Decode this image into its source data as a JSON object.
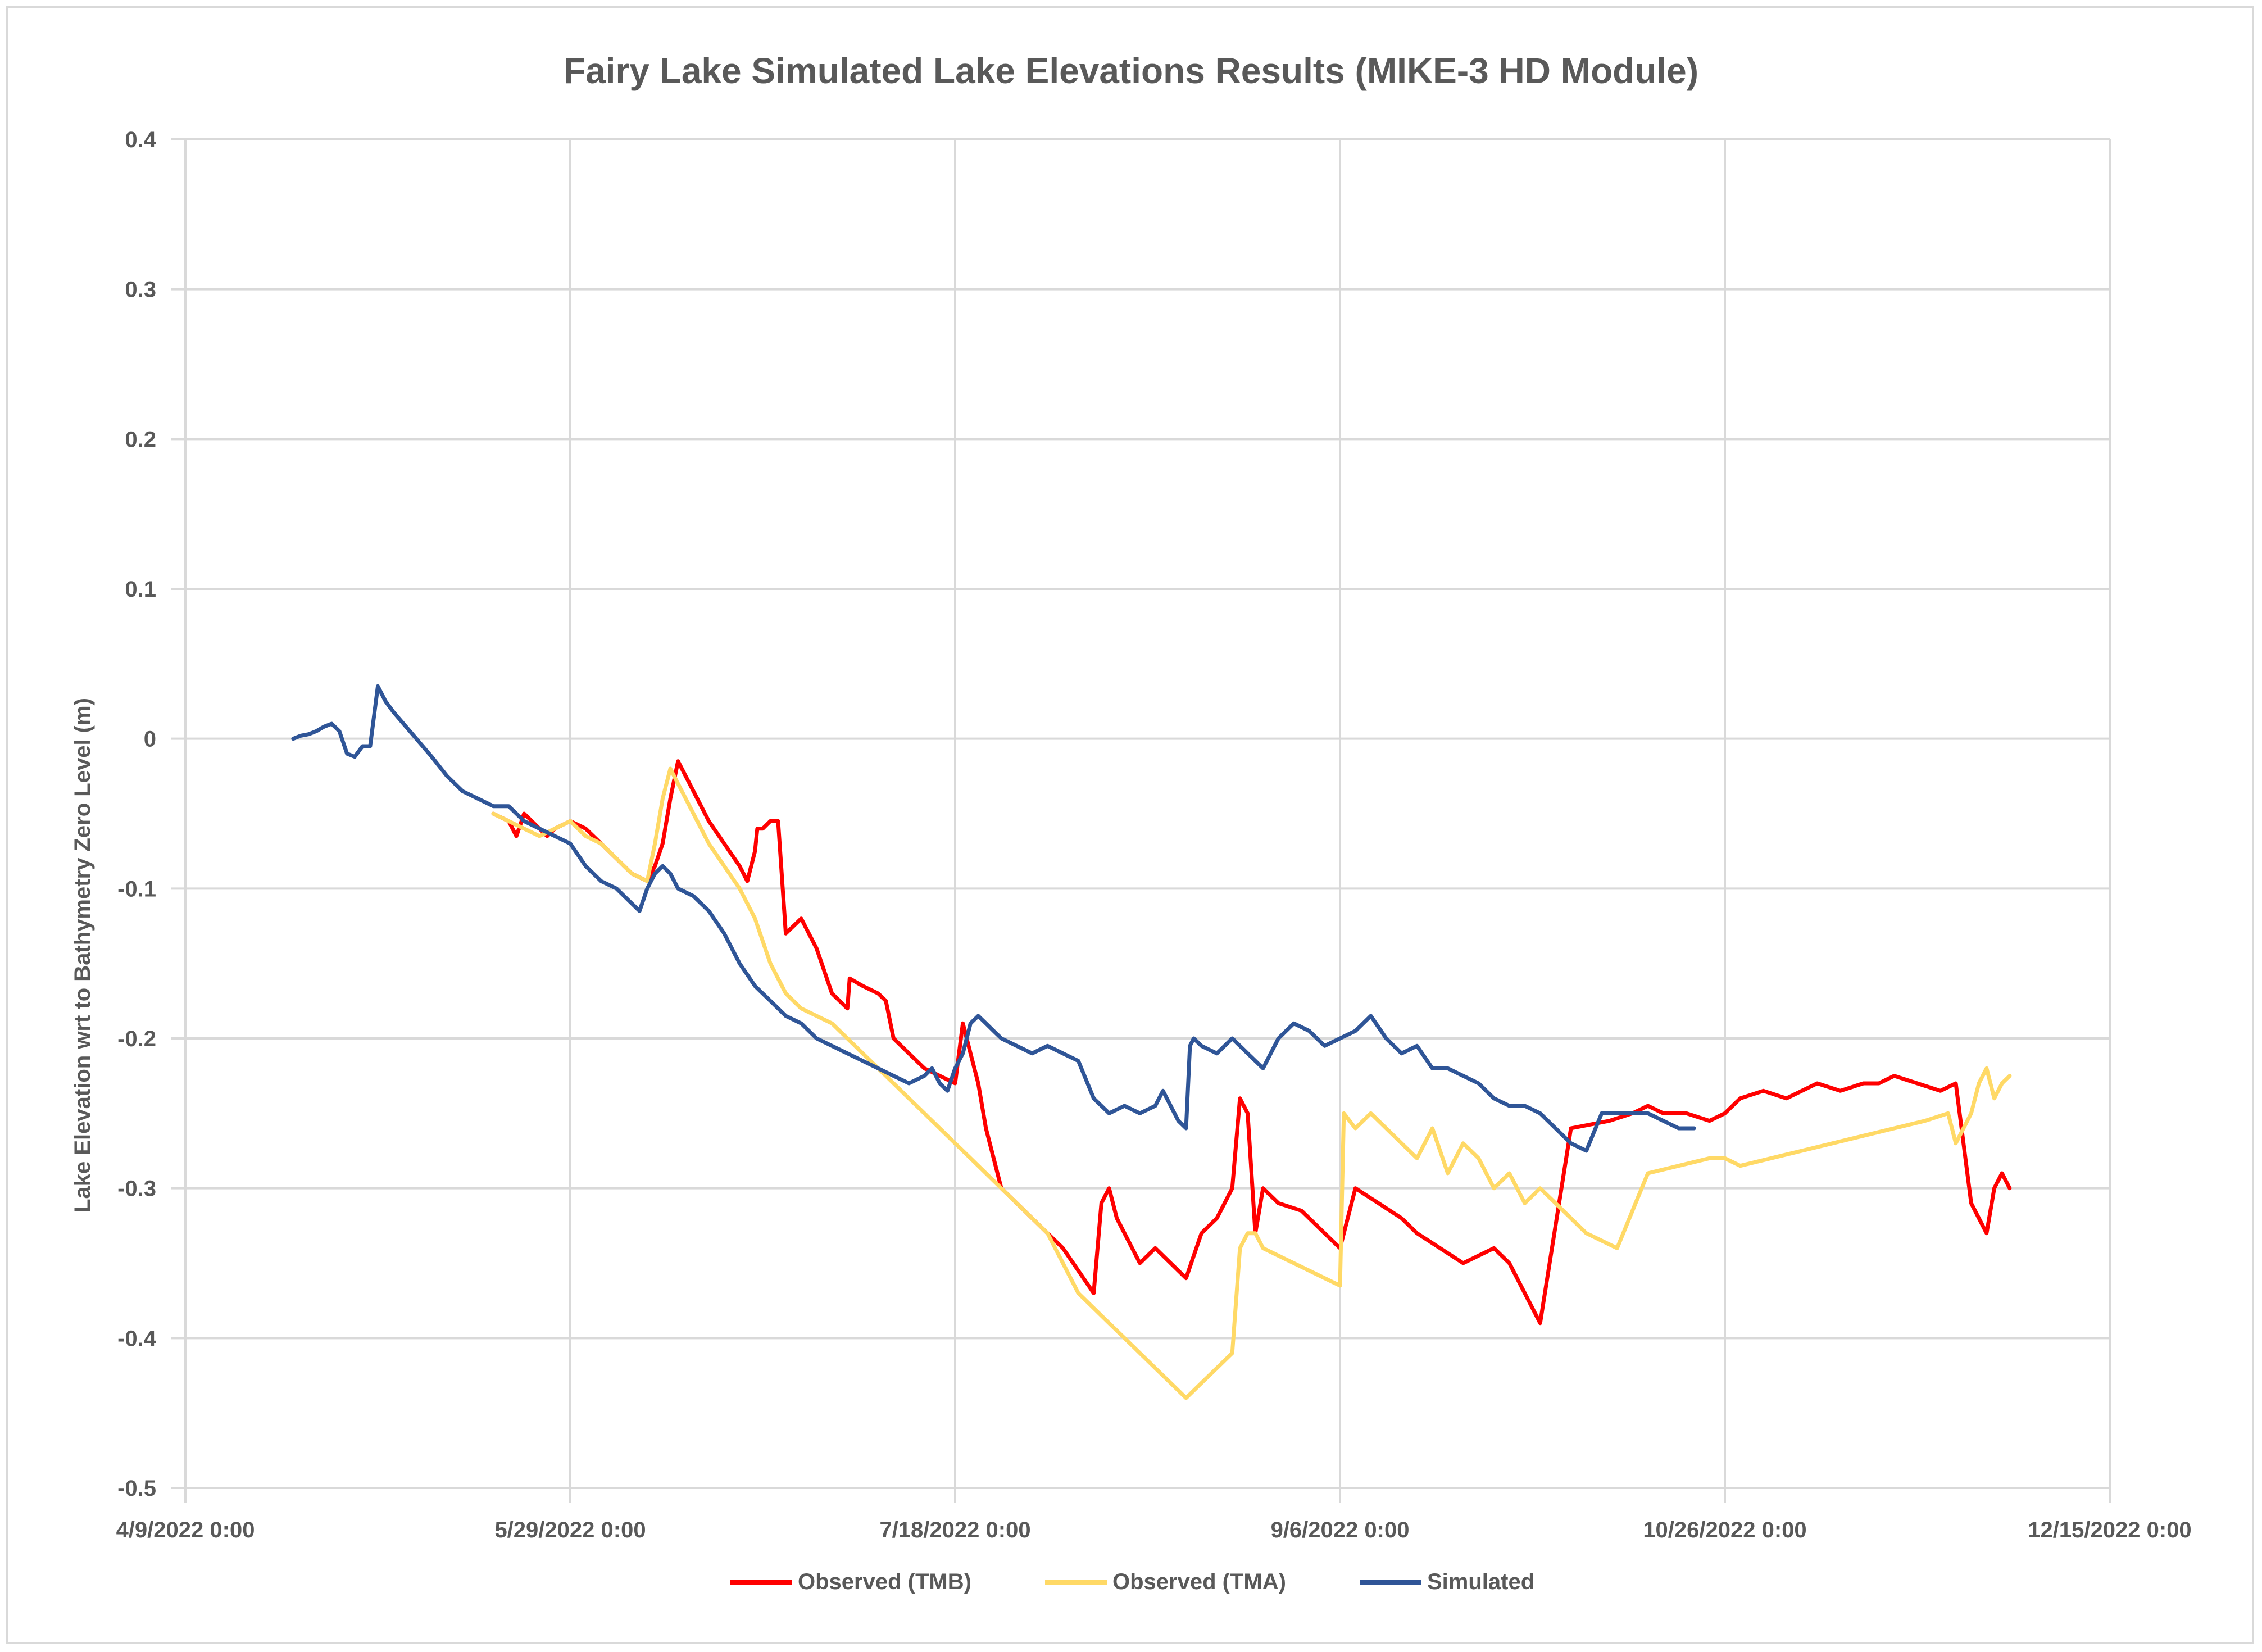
{
  "chart_data": {
    "type": "line",
    "title": "Fairy Lake Simulated Lake Elevations Results (MIKE-3 HD Module)",
    "xlabel": "",
    "ylabel": "Lake Elevation wrt to Bathymetry Zero Level (m)",
    "grid": true,
    "legend_position": "bottom",
    "ylim": [
      -0.5,
      0.4
    ],
    "y_ticks": [
      0.4,
      0.3,
      0.2,
      0.1,
      0,
      -0.1,
      -0.2,
      -0.3,
      -0.4,
      -0.5
    ],
    "y_tick_labels": [
      "0.4",
      "0.3",
      "0.2",
      "0.1",
      "0",
      "-0.1",
      "-0.2",
      "-0.3",
      "-0.4",
      "-0.5"
    ],
    "xlim_days": [
      0,
      250
    ],
    "x_ticks_days": [
      0,
      50,
      100,
      150,
      200,
      250
    ],
    "x_tick_labels": [
      "4/9/2022 0:00",
      "5/29/2022 0:00",
      "7/18/2022 0:00",
      "9/6/2022 0:00",
      "10/26/2022 0:00",
      "12/15/2022 0:00"
    ],
    "x_unit_note": "x values are days since 4/9/2022 0:00",
    "series": [
      {
        "name": "Observed (TMB)",
        "color": "#ff0000",
        "x": [
          40,
          42,
          43,
          44,
          45,
          46,
          47,
          48,
          50,
          52,
          54,
          56,
          58,
          60,
          61,
          62,
          63,
          64,
          66,
          68,
          70,
          72,
          73,
          74,
          74.3,
          75,
          76,
          77,
          78,
          80,
          81,
          82,
          84,
          86,
          86.3,
          88,
          90,
          91,
          92,
          94,
          96,
          98,
          100,
          101,
          102,
          103,
          104,
          105,
          106,
          108,
          110,
          112,
          114,
          118,
          119,
          120,
          121,
          122,
          124,
          126,
          128,
          130,
          132,
          134,
          136,
          137,
          138,
          139,
          140,
          142,
          145,
          148,
          150,
          152,
          155,
          158,
          160,
          163,
          166,
          170,
          172,
          173,
          174,
          176,
          180,
          185,
          188,
          190,
          192,
          195,
          198,
          200,
          202,
          205,
          208,
          210,
          212,
          215,
          218,
          220,
          222,
          225,
          228,
          230,
          232,
          233,
          234,
          235,
          236,
          237
        ],
        "y": [
          -0.05,
          -0.055,
          -0.065,
          -0.05,
          -0.055,
          -0.06,
          -0.065,
          -0.06,
          -0.055,
          -0.06,
          -0.07,
          -0.08,
          -0.09,
          -0.095,
          -0.085,
          -0.07,
          -0.04,
          -0.015,
          -0.035,
          -0.055,
          -0.07,
          -0.085,
          -0.095,
          -0.075,
          -0.06,
          -0.06,
          -0.055,
          -0.055,
          -0.13,
          -0.12,
          -0.13,
          -0.14,
          -0.17,
          -0.18,
          -0.16,
          -0.165,
          -0.17,
          -0.175,
          -0.2,
          -0.21,
          -0.22,
          -0.225,
          -0.23,
          -0.19,
          -0.21,
          -0.23,
          -0.26,
          -0.28,
          -0.3,
          -0.31,
          -0.32,
          -0.33,
          -0.34,
          -0.37,
          -0.31,
          -0.3,
          -0.32,
          -0.33,
          -0.35,
          -0.34,
          -0.35,
          -0.36,
          -0.33,
          -0.32,
          -0.3,
          -0.24,
          -0.25,
          -0.33,
          -0.3,
          -0.31,
          -0.315,
          -0.33,
          -0.34,
          -0.3,
          -0.31,
          -0.32,
          -0.33,
          -0.34,
          -0.35,
          -0.34,
          -0.35,
          -0.36,
          -0.37,
          -0.39,
          -0.26,
          -0.255,
          -0.25,
          -0.245,
          -0.25,
          -0.25,
          -0.255,
          -0.25,
          -0.24,
          -0.235,
          -0.24,
          -0.235,
          -0.23,
          -0.235,
          -0.23,
          -0.23,
          -0.225,
          -0.23,
          -0.235,
          -0.23,
          -0.31,
          -0.32,
          -0.33,
          -0.3,
          -0.29,
          -0.3
        ]
      },
      {
        "name": "Observed (TMA)",
        "color": "#ffd966",
        "x": [
          40,
          42,
          44,
          46,
          48,
          50,
          52,
          54,
          56,
          58,
          60,
          61,
          62,
          63,
          64,
          66,
          68,
          70,
          72,
          74,
          76,
          78,
          80,
          82,
          84,
          86,
          88,
          90,
          92,
          94,
          96,
          98,
          100,
          102,
          104,
          106,
          108,
          110,
          112,
          114,
          116,
          118,
          120,
          122,
          124,
          126,
          128,
          130,
          132,
          134,
          136,
          137,
          138,
          139,
          140,
          142,
          144,
          146,
          148,
          150,
          150.5,
          152,
          154,
          156,
          158,
          160,
          162,
          164,
          166,
          168,
          170,
          172,
          174,
          176,
          178,
          180,
          182,
          186,
          190,
          194,
          198,
          200,
          202,
          206,
          210,
          214,
          218,
          222,
          226,
          229,
          230,
          231,
          232,
          233,
          234,
          235,
          236,
          237
        ],
        "y": [
          -0.05,
          -0.055,
          -0.06,
          -0.065,
          -0.06,
          -0.055,
          -0.065,
          -0.07,
          -0.08,
          -0.09,
          -0.095,
          -0.07,
          -0.04,
          -0.02,
          -0.03,
          -0.05,
          -0.07,
          -0.085,
          -0.1,
          -0.12,
          -0.15,
          -0.17,
          -0.18,
          -0.185,
          -0.19,
          -0.2,
          -0.21,
          -0.22,
          -0.23,
          -0.24,
          -0.25,
          -0.26,
          -0.27,
          -0.28,
          -0.29,
          -0.3,
          -0.31,
          -0.32,
          -0.33,
          -0.35,
          -0.37,
          -0.38,
          -0.39,
          -0.4,
          -0.41,
          -0.42,
          -0.43,
          -0.44,
          -0.43,
          -0.42,
          -0.41,
          -0.34,
          -0.33,
          -0.33,
          -0.34,
          -0.345,
          -0.35,
          -0.355,
          -0.36,
          -0.365,
          -0.25,
          -0.26,
          -0.25,
          -0.26,
          -0.27,
          -0.28,
          -0.26,
          -0.29,
          -0.27,
          -0.28,
          -0.3,
          -0.29,
          -0.31,
          -0.3,
          -0.31,
          -0.32,
          -0.33,
          -0.34,
          -0.29,
          -0.285,
          -0.28,
          -0.28,
          -0.285,
          -0.28,
          -0.275,
          -0.27,
          -0.265,
          -0.26,
          -0.255,
          -0.25,
          -0.27,
          -0.26,
          -0.25,
          -0.23,
          -0.22,
          -0.24,
          -0.23,
          -0.225
        ]
      },
      {
        "name": "Simulated",
        "color": "#2f5597",
        "x": [
          14,
          15,
          16,
          17,
          18,
          19,
          20,
          21,
          22,
          23,
          24,
          25,
          25.5,
          26,
          27,
          28,
          30,
          32,
          34,
          36,
          38,
          40,
          42,
          44,
          46,
          48,
          50,
          52,
          54,
          56,
          58,
          59,
          60,
          61,
          62,
          63,
          64,
          66,
          68,
          70,
          72,
          74,
          76,
          78,
          80,
          82,
          84,
          86,
          88,
          90,
          92,
          94,
          96,
          97,
          98,
          99,
          100,
          101,
          102,
          103,
          104,
          105,
          106,
          108,
          110,
          112,
          114,
          116,
          118,
          120,
          122,
          124,
          126,
          127,
          128,
          129,
          130,
          130.5,
          131,
          132,
          134,
          136,
          138,
          140,
          142,
          144,
          146,
          148,
          150,
          152,
          154,
          156,
          158,
          160,
          162,
          164,
          166,
          168,
          170,
          172,
          174,
          176,
          178,
          180,
          182,
          184,
          186,
          188,
          190,
          192,
          194,
          196
        ],
        "y": [
          0,
          0.002,
          0.003,
          0.005,
          0.008,
          0.01,
          0.005,
          -0.01,
          -0.012,
          -0.005,
          -0.005,
          0.035,
          0.03,
          0.025,
          0.018,
          0.012,
          0,
          -0.012,
          -0.025,
          -0.035,
          -0.04,
          -0.045,
          -0.045,
          -0.055,
          -0.06,
          -0.065,
          -0.07,
          -0.085,
          -0.095,
          -0.1,
          -0.11,
          -0.115,
          -0.1,
          -0.09,
          -0.085,
          -0.09,
          -0.1,
          -0.105,
          -0.115,
          -0.13,
          -0.15,
          -0.165,
          -0.175,
          -0.185,
          -0.19,
          -0.2,
          -0.205,
          -0.21,
          -0.215,
          -0.22,
          -0.225,
          -0.23,
          -0.225,
          -0.22,
          -0.23,
          -0.235,
          -0.22,
          -0.21,
          -0.19,
          -0.185,
          -0.19,
          -0.195,
          -0.2,
          -0.205,
          -0.21,
          -0.205,
          -0.21,
          -0.215,
          -0.24,
          -0.25,
          -0.245,
          -0.25,
          -0.245,
          -0.235,
          -0.245,
          -0.255,
          -0.26,
          -0.205,
          -0.2,
          -0.205,
          -0.21,
          -0.2,
          -0.21,
          -0.22,
          -0.2,
          -0.19,
          -0.195,
          -0.205,
          -0.2,
          -0.195,
          -0.185,
          -0.2,
          -0.21,
          -0.205,
          -0.22,
          -0.22,
          -0.225,
          -0.23,
          -0.24,
          -0.245,
          -0.245,
          -0.25,
          -0.26,
          -0.27,
          -0.275,
          -0.25,
          -0.25,
          -0.25,
          -0.25,
          -0.255,
          -0.26,
          -0.26
        ]
      }
    ]
  }
}
